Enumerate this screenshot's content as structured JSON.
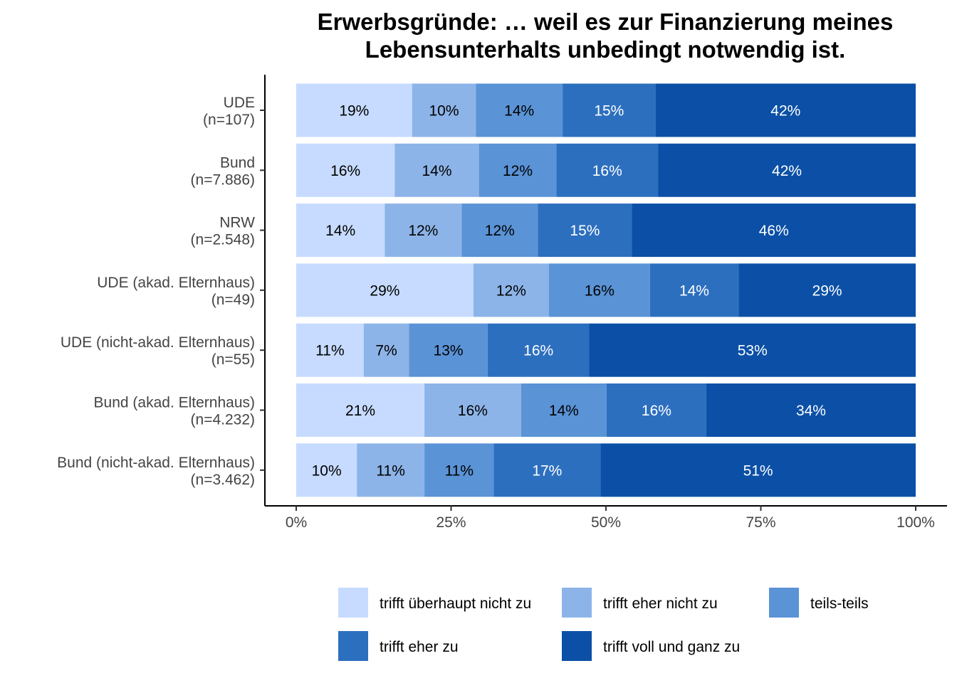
{
  "chart_data": {
    "type": "bar",
    "orientation": "horizontal",
    "stacked": "percent",
    "title": "Erwerbsgründe: … weil es zur Finanzierung meines Lebensunterhalts unbedingt notwendig ist.",
    "title_lines": [
      "Erwerbsgründe: … weil es zur Finanzierung meines",
      "Lebensunterhalts unbedingt notwendig ist."
    ],
    "xlabel": "",
    "ylabel": "",
    "xlim": [
      0,
      100
    ],
    "x_ticks": [
      "0%",
      "25%",
      "50%",
      "75%",
      "100%"
    ],
    "x_tick_values": [
      0,
      25,
      50,
      75,
      100
    ],
    "grid": false,
    "legend_position": "bottom",
    "categories": [
      [
        "UDE",
        "(n=107)"
      ],
      [
        "Bund",
        "(n=7.886)"
      ],
      [
        "NRW",
        "(n=2.548)"
      ],
      [
        "UDE (akad. Elternhaus)",
        "(n=49)"
      ],
      [
        "UDE (nicht-akad. Elternhaus)",
        "(n=55)"
      ],
      [
        "Bund (akad. Elternhaus)",
        "(n=4.232)"
      ],
      [
        "Bund (nicht-akad. Elternhaus)",
        "(n=3.462)"
      ]
    ],
    "series": [
      {
        "name": "trifft überhaupt nicht zu",
        "color": "#c6dbff",
        "text_color": "#000000",
        "values": [
          18.7,
          15.9,
          14.3,
          28.6,
          10.9,
          20.7,
          9.8
        ]
      },
      {
        "name": "trifft eher nicht zu",
        "color": "#8db4e8",
        "text_color": "#000000",
        "values": [
          10.3,
          13.6,
          12.4,
          12.2,
          7.3,
          15.6,
          10.9
        ]
      },
      {
        "name": "teils-teils",
        "color": "#5a93d6",
        "text_color": "#000000",
        "values": [
          14.0,
          12.5,
          12.3,
          16.3,
          12.7,
          13.8,
          11.2
        ]
      },
      {
        "name": "trifft eher zu",
        "color": "#2d6fbf",
        "text_color": "#ffffff",
        "values": [
          15.0,
          16.4,
          15.2,
          14.3,
          16.4,
          16.1,
          17.2
        ]
      },
      {
        "name": "trifft voll und ganz zu",
        "color": "#0b50a6",
        "text_color": "#ffffff",
        "values": [
          42.0,
          41.6,
          45.8,
          28.6,
          52.7,
          33.8,
          50.9
        ]
      }
    ],
    "data_labels": [
      [
        "19%",
        "10%",
        "14%",
        "15%",
        "42%"
      ],
      [
        "16%",
        "14%",
        "12%",
        "16%",
        "42%"
      ],
      [
        "14%",
        "12%",
        "12%",
        "15%",
        "46%"
      ],
      [
        "29%",
        "12%",
        "16%",
        "14%",
        "29%"
      ],
      [
        "11%",
        "7%",
        "13%",
        "16%",
        "53%"
      ],
      [
        "21%",
        "16%",
        "14%",
        "16%",
        "34%"
      ],
      [
        "10%",
        "11%",
        "11%",
        "17%",
        "51%"
      ]
    ]
  }
}
